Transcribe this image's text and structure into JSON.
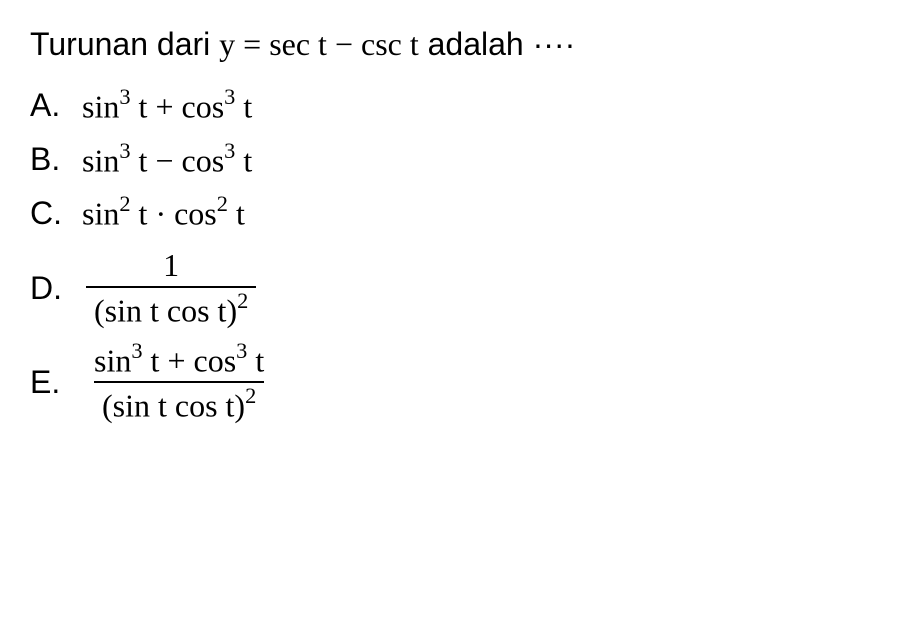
{
  "question": {
    "prefix": "Turunan dari ",
    "var": "y",
    "eq": " = ",
    "expr_a": "sec t",
    "minus": " − ",
    "expr_b": "csc t",
    "suffix": " adalah ",
    "dots": "···· "
  },
  "options": {
    "a": {
      "label": "A.",
      "t1": "sin",
      "p1": "3",
      "v1": " t",
      "op": " + ",
      "t2": "cos",
      "p2": "3",
      "v2": " t"
    },
    "b": {
      "label": "B.",
      "t1": "sin",
      "p1": "3",
      "v1": " t",
      "op": " − ",
      "t2": "cos",
      "p2": "3",
      "v2": " t"
    },
    "c": {
      "label": "C.",
      "t1": "sin",
      "p1": "2",
      "v1": " t",
      "op": " · ",
      "t2": "cos",
      "p2": "2",
      "v2": " t"
    },
    "d": {
      "label": "D.",
      "num": "1",
      "den_a": "(sin t cos t)",
      "den_p": "2"
    },
    "e": {
      "label": "E.",
      "num_t1": "sin",
      "num_p1": "3",
      "num_v1": " t",
      "num_op": " + ",
      "num_t2": "cos",
      "num_p2": "3",
      "num_v2": " t",
      "den_a": "(sin t cos t)",
      "den_p": "2"
    }
  },
  "style": {
    "text_color": "#000000",
    "background_color": "#ffffff",
    "question_fontsize": 32,
    "option_fontsize": 32,
    "sup_fontsize_ratio": 0.7,
    "text_font": "Arial",
    "math_font": "Times New Roman"
  }
}
